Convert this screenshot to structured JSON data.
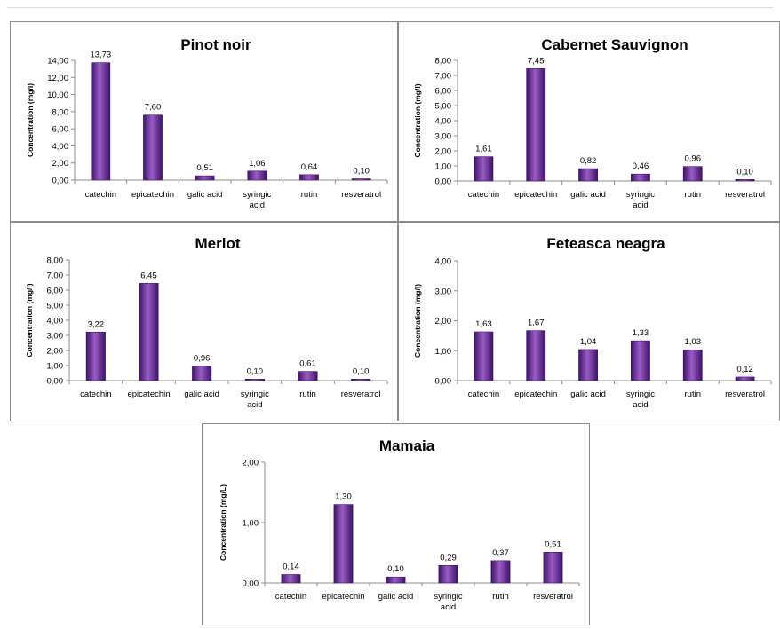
{
  "chart_data": [
    {
      "type": "bar",
      "title": "Pinot noir",
      "ylabel": "Concentration (mg/l)",
      "categories": [
        "catechin",
        "epicatechin",
        "galic acid",
        "syringic acid",
        "rutin",
        "resveratrol"
      ],
      "values": [
        13.73,
        7.6,
        0.51,
        1.06,
        0.64,
        0.1
      ],
      "value_labels": [
        "13,73",
        "7,60",
        "0,51",
        "1,06",
        "0,64",
        "0,10"
      ],
      "yticks": [
        "0,00",
        "2,00",
        "4,00",
        "6,00",
        "8,00",
        "10,00",
        "12,00",
        "14,00"
      ],
      "ylim": [
        0,
        14
      ],
      "grid": false
    },
    {
      "type": "bar",
      "title": "Cabernet Sauvignon",
      "ylabel": "Concentration (mg/l)",
      "categories": [
        "catechin",
        "epicatechin",
        "galic acid",
        "syringic acid",
        "rutin",
        "resveratrol"
      ],
      "values": [
        1.61,
        7.45,
        0.82,
        0.46,
        0.96,
        0.1
      ],
      "value_labels": [
        "1,61",
        "7,45",
        "0,82",
        "0,46",
        "0,96",
        "0,10"
      ],
      "yticks": [
        "0,00",
        "1,00",
        "2,00",
        "3,00",
        "4,00",
        "5,00",
        "6,00",
        "7,00",
        "8,00"
      ],
      "ylim": [
        0,
        8
      ],
      "grid": false
    },
    {
      "type": "bar",
      "title": "Merlot",
      "ylabel": "Concentration (mg/l)",
      "categories": [
        "catechin",
        "epicatechin",
        "galic acid",
        "syringic acid",
        "rutin",
        "resveratrol"
      ],
      "values": [
        3.22,
        6.45,
        0.96,
        0.1,
        0.61,
        0.1
      ],
      "value_labels": [
        "3,22",
        "6,45",
        "0,96",
        "0,10",
        "0,61",
        "0,10"
      ],
      "yticks": [
        "0,00",
        "1,00",
        "2,00",
        "3,00",
        "4,00",
        "5,00",
        "6,00",
        "7,00",
        "8,00"
      ],
      "ylim": [
        0,
        8
      ],
      "grid": false
    },
    {
      "type": "bar",
      "title": "Feteasca neagra",
      "ylabel": "Concentration (mg/l)",
      "categories": [
        "catechin",
        "epicatechin",
        "galic acid",
        "syringic acid",
        "rutin",
        "resveratrol"
      ],
      "values": [
        1.63,
        1.67,
        1.04,
        1.33,
        1.03,
        0.12
      ],
      "value_labels": [
        "1,63",
        "1,67",
        "1,04",
        "1,33",
        "1,03",
        "0,12"
      ],
      "yticks": [
        "0,00",
        "1,00",
        "2,00",
        "3,00",
        "4,00"
      ],
      "ylim": [
        0,
        4
      ],
      "grid": false
    },
    {
      "type": "bar",
      "title": "Mamaia",
      "ylabel": "Concentration (mg/L)",
      "categories": [
        "catechin",
        "epicatechin",
        "galic acid",
        "syringic acid",
        "rutin",
        "resveratrol"
      ],
      "values": [
        0.14,
        1.3,
        0.1,
        0.29,
        0.37,
        0.51
      ],
      "value_labels": [
        "0,14",
        "1,30",
        "0,10",
        "0,29",
        "0,37",
        "0,51"
      ],
      "yticks": [
        "0,00",
        "1,00",
        "2,00"
      ],
      "ylim": [
        0,
        2
      ],
      "grid": false
    }
  ],
  "colors": {
    "bar": "#7030a0",
    "bar_light": "#9a5cc6",
    "bar_dark": "#3e1466",
    "axis": "#8c8c8c"
  }
}
